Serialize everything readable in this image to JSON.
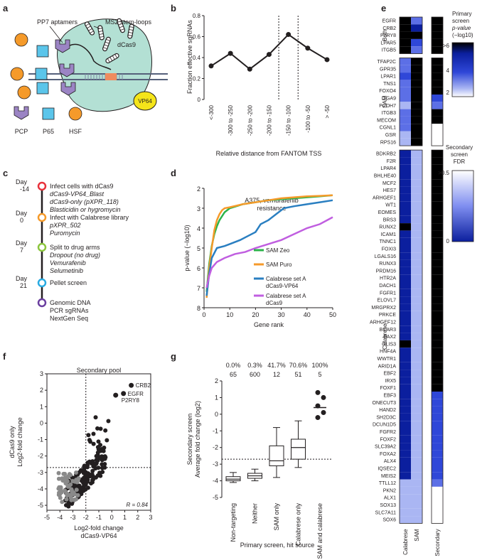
{
  "panels": {
    "a": "a",
    "b": "b",
    "c": "c",
    "d": "d",
    "e": "e",
    "f": "f",
    "g": "g"
  },
  "panel_a": {
    "labels": [
      "PP7 aptamers",
      "MS2 stem-loops",
      "dCas9",
      "VP64"
    ],
    "legend": [
      {
        "name": "PCP",
        "color": "#9b84c4"
      },
      {
        "name": "P65",
        "color": "#5bc5ea"
      },
      {
        "name": "HSF",
        "color": "#f59a2a"
      }
    ],
    "colors": {
      "body": "#b3e0d4",
      "vp64": "#f5e51a"
    }
  },
  "panel_c": {
    "steps": [
      {
        "day": "Day",
        "daynum": "-14",
        "color": "#e8323c",
        "lines": [
          {
            "t": "Infect cells with dCas9",
            "i": false
          },
          {
            "t": "dCas9-VP64_Blast",
            "i": true
          },
          {
            "t": "dCas9-only (pXPR_118)",
            "i": true
          },
          {
            "t": "Blasticidin or hygromycin",
            "i": true
          }
        ]
      },
      {
        "day": "Day",
        "daynum": "0",
        "color": "#f59a2a",
        "lines": [
          {
            "t": "Infect with Calabrese library",
            "i": false
          },
          {
            "t": "pXPR_502",
            "i": true
          },
          {
            "t": "Puromycin",
            "i": true
          }
        ]
      },
      {
        "day": "Day",
        "daynum": "7",
        "color": "#8cc63e",
        "lines": [
          {
            "t": "Split to drug arms",
            "i": false
          },
          {
            "t": "Dropout (no drug)",
            "i": true
          },
          {
            "t": "Vemurafenib",
            "i": true
          },
          {
            "t": "Selumetinib",
            "i": true
          }
        ]
      },
      {
        "day": "Day",
        "daynum": "21",
        "color": "#29abe2",
        "lines": [
          {
            "t": "Pellet screen",
            "i": false
          }
        ]
      },
      {
        "day": "",
        "daynum": "",
        "color": "#6b3fa0",
        "lines": [
          {
            "t": "Genomic DNA",
            "i": false
          },
          {
            "t": "PCR sgRNAs",
            "i": false
          },
          {
            "t": "NextGen Seq",
            "i": false
          }
        ]
      }
    ]
  },
  "chart_data": [
    {
      "panel": "b",
      "type": "line",
      "categories": [
        "<-300",
        "-300 to -250",
        "-250 to -200",
        "-200 to -150",
        "-150 to -100",
        "-100 to -50",
        "> -50"
      ],
      "values": [
        0.32,
        0.44,
        0.29,
        0.43,
        0.62,
        0.49,
        0.38
      ],
      "ylabel": "Fraction effective sgRNAs",
      "xlabel": "Relative distance from FANTOM TSS",
      "ylim": [
        0,
        0.8
      ],
      "yticks": [
        0,
        0.2,
        0.4,
        0.6,
        0.8
      ],
      "dotted_lines_between": [
        [
          3,
          4
        ],
        [
          4,
          5
        ]
      ]
    },
    {
      "panel": "d",
      "type": "line",
      "title": "A375, vemurafenib",
      "title2": "resistance",
      "xlabel": "Gene rank",
      "ylabel": "p-value (−log10)",
      "xlim": [
        0,
        50
      ],
      "ylim": [
        8,
        2
      ],
      "xticks": [
        0,
        10,
        20,
        30,
        40,
        50
      ],
      "yticks": [
        2,
        3,
        4,
        5,
        6,
        7,
        8
      ],
      "series": [
        {
          "name": "SAM Zeo",
          "color": "#2bb34a",
          "points": [
            [
              1,
              7.2
            ],
            [
              2,
              5.8
            ],
            [
              3,
              4.9
            ],
            [
              4,
              4.3
            ],
            [
              5,
              3.9
            ],
            [
              6,
              3.6
            ],
            [
              8,
              3.2
            ],
            [
              10,
              3.0
            ],
            [
              15,
              2.8
            ],
            [
              20,
              2.7
            ],
            [
              25,
              2.6
            ],
            [
              30,
              2.55
            ],
            [
              35,
              2.5
            ],
            [
              40,
              2.45
            ],
            [
              45,
              2.4
            ],
            [
              50,
              2.35
            ]
          ]
        },
        {
          "name": "SAM Puro",
          "color": "#f59a2a",
          "points": [
            [
              1,
              7.5
            ],
            [
              2,
              6.0
            ],
            [
              3,
              5.0
            ],
            [
              4,
              4.1
            ],
            [
              5,
              3.6
            ],
            [
              6,
              3.3
            ],
            [
              7,
              3.1
            ],
            [
              8,
              3.0
            ],
            [
              10,
              2.95
            ],
            [
              15,
              2.8
            ],
            [
              20,
              2.7
            ],
            [
              25,
              2.6
            ],
            [
              30,
              2.5
            ],
            [
              35,
              2.45
            ],
            [
              40,
              2.4
            ],
            [
              45,
              2.38
            ],
            [
              50,
              2.35
            ]
          ]
        },
        {
          "name": "Calabrese set A",
          "name2": "dCas9-VP64",
          "color": "#2a7fc1",
          "points": [
            [
              1,
              7.4
            ],
            [
              2,
              6.3
            ],
            [
              3,
              5.5
            ],
            [
              5,
              5.0
            ],
            [
              8,
              4.9
            ],
            [
              10,
              4.8
            ],
            [
              14,
              4.6
            ],
            [
              17,
              4.4
            ],
            [
              20,
              4.2
            ],
            [
              22,
              3.8
            ],
            [
              25,
              3.6
            ],
            [
              28,
              3.3
            ],
            [
              31,
              3.0
            ],
            [
              35,
              2.9
            ],
            [
              40,
              2.8
            ],
            [
              45,
              2.7
            ],
            [
              50,
              2.6
            ]
          ]
        },
        {
          "name": "Calabrese set A",
          "name2": "dCas9",
          "color": "#c05ee0",
          "points": [
            [
              1,
              7.0
            ],
            [
              2,
              6.4
            ],
            [
              3,
              6.0
            ],
            [
              5,
              5.7
            ],
            [
              8,
              5.5
            ],
            [
              12,
              5.3
            ],
            [
              16,
              5.2
            ],
            [
              20,
              5.0
            ],
            [
              25,
              4.8
            ],
            [
              30,
              4.6
            ],
            [
              35,
              4.3
            ],
            [
              40,
              4.0
            ],
            [
              45,
              3.8
            ],
            [
              50,
              3.45
            ]
          ]
        }
      ]
    },
    {
      "panel": "f",
      "type": "scatter",
      "title": "Secondary pool",
      "xlabel": "Log2-fold change",
      "xlabel2": "dCas9-VP64",
      "ylabel": "dCas9 only",
      "ylabel2": "Log2-fold change",
      "xlim": [
        -5,
        3
      ],
      "ylim": [
        -5.3,
        3
      ],
      "xticks": [
        -5,
        -4,
        -3,
        -2,
        -1,
        0,
        1,
        2,
        3
      ],
      "yticks": [
        -5,
        -4,
        -3,
        -2,
        -1,
        0,
        1,
        2,
        3
      ],
      "thresholds": {
        "x": -2.0,
        "y": -2.7
      },
      "annotation": "R = 0.84",
      "labeled_points": [
        {
          "label": "CRB2",
          "x": 1.5,
          "y": 2.3
        },
        {
          "label": "EGFR",
          "x": 0.9,
          "y": 1.8
        },
        {
          "label": "P2RY8",
          "x": 0.3,
          "y": 1.7
        }
      ]
    },
    {
      "panel": "g",
      "type": "boxplot",
      "ylabel": "Secondary screen",
      "ylabel2": "Average fold change (log2)",
      "xlabel": "Primary screen, hit source",
      "ylim": [
        -5,
        2
      ],
      "yticks": [
        -5,
        -4,
        -3,
        -2,
        -1,
        0,
        1,
        2
      ],
      "threshold": -2.7,
      "categories": [
        "Non-targeting",
        "Neither",
        "SAM only",
        "Calabrese only",
        "SAM and calabrese"
      ],
      "percent": [
        "0.0%",
        "0.3%",
        "41.7%",
        "70.6%",
        "100%"
      ],
      "counts": [
        "65",
        "600",
        "12",
        "51",
        "5"
      ],
      "boxes": [
        {
          "min": -4.1,
          "q1": -4.0,
          "med": -3.9,
          "q3": -3.75,
          "max": -3.5
        },
        {
          "min": -4.0,
          "q1": -3.85,
          "med": -3.7,
          "q3": -3.55,
          "max": -3.3
        },
        {
          "min": -3.8,
          "q1": -3.1,
          "med": -2.8,
          "q3": -1.9,
          "max": -0.8
        },
        {
          "min": -3.2,
          "q1": -2.7,
          "med": -2.0,
          "q3": -1.5,
          "max": -0.4
        },
        {
          "points": [
            1.3,
            1.0,
            0.5,
            0.1,
            -0.2
          ],
          "mean": 0.4
        }
      ]
    },
    {
      "panel": "e",
      "type": "heatmap",
      "columns": [
        "Calabrese",
        "SAM",
        "Secondary"
      ],
      "groups": [
        {
          "name": "Both",
          "genes": [
            "EGFR",
            "CRB2",
            "P2RY8",
            "LPAR5",
            "ITGB5"
          ],
          "cal": [
            0,
            0,
            0,
            0,
            0
          ],
          "sam": [
            3,
            1,
            0,
            2,
            3
          ],
          "sec": [
            0,
            0,
            0,
            0,
            0
          ]
        },
        {
          "name": "SAM",
          "genes": [
            "TFAP2C",
            "GPR35",
            "LPAR1",
            "TNS1",
            "FOXO4",
            "ITGA9",
            "PCDH7",
            "ITGB3",
            "MECOM",
            "CGNL1",
            "GSR",
            "RPS16"
          ],
          "cal": [
            3,
            3,
            2,
            3,
            3,
            3,
            4,
            3,
            3,
            3,
            4,
            4
          ],
          "sam": [
            0,
            0,
            0,
            0,
            0,
            0,
            0,
            0,
            0,
            0,
            0,
            0
          ],
          "sec": [
            0,
            0,
            0,
            0,
            0,
            2,
            3,
            0,
            0,
            5,
            5,
            5
          ]
        },
        {
          "name": "Calabrese",
          "genes": [
            "BDKRB2",
            "F2R",
            "LPAR4",
            "BHLHE40",
            "MCF2",
            "HES7",
            "ARHGEF1",
            "WT1",
            "EOMES",
            "BRS3",
            "RUNX2",
            "ICAM1",
            "TNNC1",
            "FOXI3",
            "LGALS16",
            "RUNX3",
            "PRDM16",
            "HTR2A",
            "DACH1",
            "FGFR1",
            "ELOVL7",
            "MRGPRX2",
            "PRKCE",
            "ARHGEF12",
            "BCAR3",
            "PAX2",
            "GLIS3",
            "HNF4A",
            "WWTR1",
            "ARID1A",
            "EBF2",
            "IRX5",
            "FOXF1",
            "EBF3",
            "ONECUT3",
            "HAND2",
            "SH2D3C",
            "DCUN1D5",
            "FGFR2",
            "FOXF2",
            "SLC39A2",
            "FOXA2",
            "ALX4",
            "IQSEC2",
            "MEIS2",
            "TTLL12",
            "PKN2",
            "ALX1",
            "SOX13",
            "SLC7A11",
            "SOX6"
          ],
          "cal": [
            1,
            1,
            1,
            1,
            1,
            1,
            1,
            1,
            1,
            1,
            0,
            1,
            1,
            1,
            1,
            1,
            1,
            1,
            1,
            1,
            1,
            1,
            1,
            1,
            1,
            1,
            0,
            1,
            1,
            1,
            1,
            1,
            1,
            1,
            1,
            1,
            1,
            1,
            1,
            1,
            1,
            1,
            1,
            1,
            1,
            4,
            4,
            4,
            4,
            4,
            4
          ],
          "sam": [
            4,
            4,
            4,
            4,
            4,
            4,
            4,
            4,
            4,
            4,
            4,
            4,
            4,
            4,
            4,
            4,
            4,
            4,
            4,
            4,
            4,
            4,
            4,
            4,
            4,
            4,
            4,
            4,
            4,
            4,
            4,
            4,
            4,
            4,
            4,
            4,
            4,
            4,
            4,
            4,
            4,
            4,
            4,
            4,
            4,
            4,
            4,
            4,
            4,
            4,
            4
          ],
          "sec": [
            0,
            0,
            0,
            0,
            0,
            0,
            0,
            0,
            0,
            0,
            0,
            0,
            0,
            0,
            0,
            0,
            0,
            0,
            0,
            0,
            0,
            0,
            0,
            0,
            0,
            0,
            0,
            0,
            0,
            0,
            0,
            0,
            0,
            2,
            2,
            2,
            2,
            2,
            2,
            2,
            2,
            2,
            2,
            2,
            2,
            3,
            5,
            5,
            5,
            5,
            5
          ]
        }
      ],
      "legend1": {
        "title": [
          "Primary",
          "screen",
          "p-value",
          "(−log10)"
        ],
        "ticks": [
          ">6",
          "4",
          "2"
        ]
      },
      "legend2": {
        "title": [
          "Secondary",
          "screen",
          "FDR"
        ],
        "ticks": [
          ">0.5",
          "0"
        ]
      }
    }
  ]
}
